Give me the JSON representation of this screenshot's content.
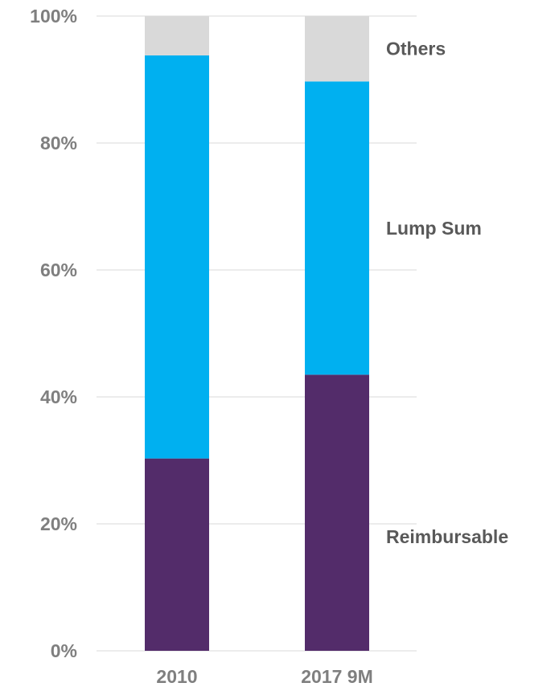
{
  "chart_data": {
    "type": "bar",
    "stacked": true,
    "categories": [
      "2010",
      "2017 9M"
    ],
    "series": [
      {
        "name": "Reimbursable",
        "color": "#532c6a",
        "values": [
          30.3,
          43.5
        ]
      },
      {
        "name": "Lump Sum",
        "color": "#00b0f0",
        "values": [
          63.5,
          46.2
        ]
      },
      {
        "name": "Others",
        "color": "#d9d9d9",
        "values": [
          6.2,
          10.3
        ]
      }
    ],
    "ylim": [
      0,
      100
    ],
    "yticks": [
      "0%",
      "20%",
      "40%",
      "60%",
      "80%",
      "100%"
    ],
    "ytick_values": [
      0,
      20,
      40,
      60,
      80,
      100
    ],
    "grid": true,
    "legend": "labels at right of bars"
  }
}
